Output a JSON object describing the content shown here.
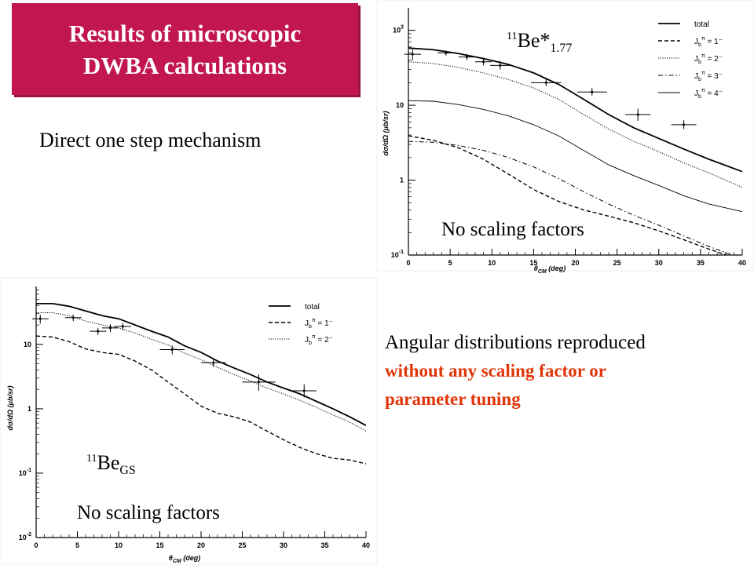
{
  "slide": {
    "title_line1": "Results of microscopic",
    "title_line2": "DWBA calculations",
    "mechanism": "Direct one step mechanism",
    "angular_line1": "Angular distributions reproduced",
    "angular_line2": "without any scaling factor or",
    "angular_line3": "parameter tuning",
    "accent_color": "#c2164e",
    "highlight_color": "#e0360a"
  },
  "chart_data": [
    {
      "type": "line",
      "state_label_base": "Be*",
      "state_label_mass": "11",
      "state_label_sub": "1.77",
      "note": "No scaling factors",
      "xlabel_main": "θ",
      "xlabel_sub": "CM",
      "xlabel_unit": "(deg)",
      "ylabel": "dσ/dΩ (μb/sr)",
      "xlim": [
        0,
        40
      ],
      "ylim_log10": [
        -1,
        2.3
      ],
      "yscale": "log",
      "xticks": [
        "0",
        "5",
        "10",
        "15",
        "20",
        "25",
        "30",
        "35",
        "40"
      ],
      "yticks": [
        {
          "base": "10",
          "exp": "-1",
          "value": 0.1
        },
        {
          "base": "1",
          "exp": "",
          "value": 1
        },
        {
          "base": "10",
          "exp": "",
          "value": 10
        },
        {
          "base": "10",
          "exp": "2",
          "value": 100
        }
      ],
      "legend": [
        {
          "label": "total",
          "style": "solid-thick"
        },
        {
          "label": "J_b^π = 1⁻",
          "style": "dashed"
        },
        {
          "label": "J_b^π = 2⁻",
          "style": "dotted"
        },
        {
          "label": "J_b^π = 3⁻",
          "style": "dashdot"
        },
        {
          "label": "J_b^π = 4⁻",
          "style": "solid-thin"
        }
      ],
      "legend_jb": "J",
      "legend_jb_sub": "b",
      "legend_pi": "π",
      "series": [
        {
          "name": "total",
          "style": "solid-thick",
          "x": [
            0,
            3,
            6,
            9,
            12,
            15,
            18,
            21,
            24,
            27,
            30,
            33,
            36,
            40
          ],
          "y": [
            58,
            55,
            49,
            42,
            35,
            27,
            19,
            12,
            7.5,
            5.0,
            3.6,
            2.6,
            1.9,
            1.3
          ]
        },
        {
          "name": "J_b^π = 1⁻",
          "style": "dashed",
          "x": [
            0,
            3,
            6,
            9,
            12,
            15,
            18,
            21,
            24,
            27,
            30,
            33,
            36,
            40
          ],
          "y": [
            3.9,
            3.4,
            2.7,
            1.9,
            1.2,
            0.75,
            0.52,
            0.4,
            0.33,
            0.27,
            0.21,
            0.16,
            0.12,
            0.085
          ]
        },
        {
          "name": "J_b^π = 2⁻",
          "style": "dotted",
          "x": [
            0,
            3,
            6,
            9,
            12,
            15,
            18,
            21,
            24,
            27,
            30,
            33,
            36,
            40
          ],
          "y": [
            38,
            36,
            32,
            27,
            22,
            17,
            12,
            7.5,
            4.8,
            3.3,
            2.4,
            1.7,
            1.25,
            0.8
          ]
        },
        {
          "name": "J_b^π = 3⁻",
          "style": "dashdot",
          "x": [
            0,
            3,
            6,
            9,
            12,
            15,
            18,
            21,
            24,
            27,
            30,
            33,
            36,
            40
          ],
          "y": [
            3.3,
            3.2,
            2.9,
            2.5,
            2.0,
            1.5,
            1.05,
            0.7,
            0.48,
            0.34,
            0.25,
            0.18,
            0.13,
            0.09
          ]
        },
        {
          "name": "J_b^π = 4⁻",
          "style": "solid-thin",
          "x": [
            0,
            3,
            6,
            9,
            12,
            15,
            18,
            21,
            24,
            27,
            30,
            33,
            36,
            40
          ],
          "y": [
            11.5,
            11.3,
            10.2,
            8.8,
            7.2,
            5.5,
            3.9,
            2.5,
            1.6,
            1.15,
            0.85,
            0.62,
            0.48,
            0.38
          ]
        }
      ],
      "points": [
        {
          "x": 0.5,
          "y": 48,
          "xerr": 1.0,
          "ylo": 40,
          "yhi": 56
        },
        {
          "x": 4.5,
          "y": 50,
          "xerr": 1.0,
          "ylo": 46,
          "yhi": 54
        },
        {
          "x": 7.0,
          "y": 44,
          "xerr": 1.0,
          "ylo": 40,
          "yhi": 48
        },
        {
          "x": 9.0,
          "y": 38,
          "xerr": 1.0,
          "ylo": 34,
          "yhi": 43
        },
        {
          "x": 11.0,
          "y": 34,
          "xerr": 1.2,
          "ylo": 30,
          "yhi": 39
        },
        {
          "x": 16.5,
          "y": 20,
          "xerr": 1.8,
          "ylo": 18,
          "yhi": 23
        },
        {
          "x": 22.0,
          "y": 15,
          "xerr": 1.8,
          "ylo": 13.5,
          "yhi": 17
        },
        {
          "x": 27.5,
          "y": 7.5,
          "xerr": 1.5,
          "ylo": 6.2,
          "yhi": 9.0
        },
        {
          "x": 33.0,
          "y": 5.5,
          "xerr": 1.5,
          "ylo": 4.8,
          "yhi": 6.3
        }
      ]
    },
    {
      "type": "line",
      "state_label_base": "Be",
      "state_label_mass": "11",
      "state_label_sub": "GS",
      "note": "No scaling factors",
      "xlabel_main": "θ",
      "xlabel_sub": "CM",
      "xlabel_unit": "(deg)",
      "ylabel": "dσ/dΩ (μb/sr)",
      "xlim": [
        0,
        40
      ],
      "ylim_log10": [
        -2,
        1.9
      ],
      "yscale": "log",
      "xticks": [
        "0",
        "5",
        "10",
        "15",
        "20",
        "25",
        "30",
        "35",
        "40"
      ],
      "yticks": [
        {
          "base": "10",
          "exp": "-2",
          "value": 0.01
        },
        {
          "base": "10",
          "exp": "-1",
          "value": 0.1
        },
        {
          "base": "1",
          "exp": "",
          "value": 1
        },
        {
          "base": "10",
          "exp": "",
          "value": 10
        }
      ],
      "legend": [
        {
          "label": "total",
          "style": "solid-thick"
        },
        {
          "label": "J_b^π = 1⁻",
          "style": "dashed"
        },
        {
          "label": "J_b^π = 2⁻",
          "style": "dotted"
        }
      ],
      "legend_jb": "J",
      "legend_jb_sub": "b",
      "legend_pi": "π",
      "series": [
        {
          "name": "total",
          "style": "solid-thick",
          "x": [
            0,
            2,
            4,
            6,
            8,
            10,
            12,
            14,
            16,
            18,
            20,
            22,
            24,
            26,
            28,
            30,
            32,
            34,
            36,
            38,
            40
          ],
          "y": [
            43,
            43,
            39,
            33,
            28,
            25,
            20,
            16,
            13,
            9.5,
            7.5,
            5.5,
            4.3,
            3.4,
            2.6,
            2.1,
            1.7,
            1.3,
            1.0,
            0.75,
            0.55
          ]
        },
        {
          "name": "J_b^π = 1⁻",
          "style": "dashed",
          "x": [
            0,
            2,
            4,
            6,
            8,
            10,
            12,
            14,
            16,
            18,
            20,
            22,
            24,
            26,
            28,
            30,
            32,
            34,
            36,
            38,
            40
          ],
          "y": [
            13.5,
            13,
            11,
            8.5,
            7.5,
            7.0,
            5.5,
            4.0,
            2.6,
            1.7,
            1.1,
            0.85,
            0.75,
            0.62,
            0.45,
            0.33,
            0.25,
            0.2,
            0.17,
            0.16,
            0.14
          ]
        },
        {
          "name": "J_b^π = 2⁻",
          "style": "dotted",
          "x": [
            0,
            2,
            4,
            6,
            8,
            10,
            12,
            14,
            16,
            18,
            20,
            22,
            24,
            26,
            28,
            30,
            32,
            34,
            36,
            38,
            40
          ],
          "y": [
            31,
            31,
            28,
            23,
            20,
            18,
            15,
            12,
            9.8,
            7.3,
            5.8,
            4.4,
            3.4,
            2.7,
            2.1,
            1.7,
            1.35,
            1.05,
            0.8,
            0.62,
            0.45
          ]
        }
      ],
      "points": [
        {
          "x": 0.5,
          "y": 25,
          "xerr": 1.0,
          "ylo": 21,
          "yhi": 29
        },
        {
          "x": 4.5,
          "y": 26,
          "xerr": 1.0,
          "ylo": 23,
          "yhi": 29
        },
        {
          "x": 7.5,
          "y": 16,
          "xerr": 1.0,
          "ylo": 14,
          "yhi": 18
        },
        {
          "x": 9.0,
          "y": 18,
          "xerr": 1.0,
          "ylo": 15.5,
          "yhi": 20.5
        },
        {
          "x": 10.5,
          "y": 19,
          "xerr": 1.0,
          "ylo": 16.5,
          "yhi": 21.5
        },
        {
          "x": 16.5,
          "y": 8.3,
          "xerr": 1.5,
          "ylo": 7.0,
          "yhi": 9.6
        },
        {
          "x": 21.5,
          "y": 5.2,
          "xerr": 1.5,
          "ylo": 4.5,
          "yhi": 6.0
        },
        {
          "x": 27.0,
          "y": 2.6,
          "xerr": 2.0,
          "ylo": 1.9,
          "yhi": 3.4
        },
        {
          "x": 32.5,
          "y": 1.9,
          "xerr": 1.5,
          "ylo": 1.5,
          "yhi": 2.4
        }
      ]
    }
  ]
}
